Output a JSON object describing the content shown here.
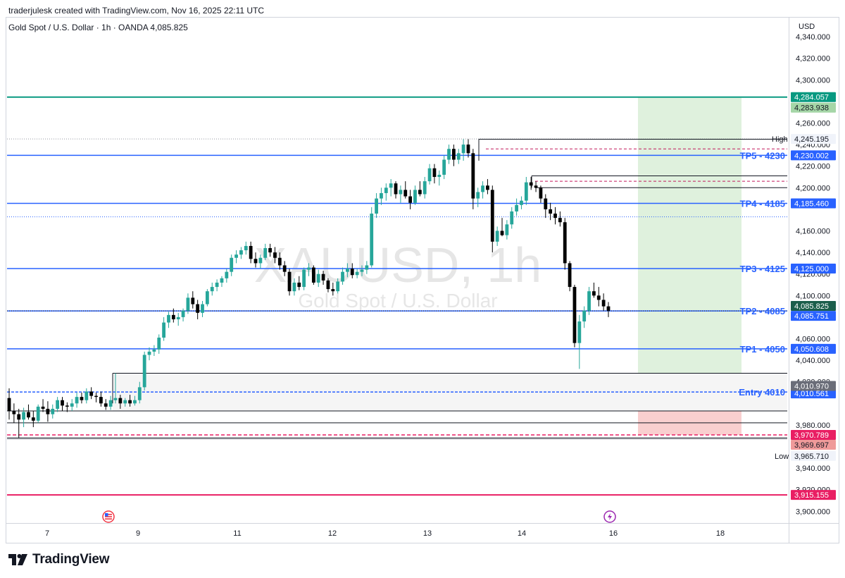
{
  "header": {
    "created_by": "traderjulesk created with TradingView.com, Nov 16, 2025 22:11 UTC",
    "symbol_line": "Gold Spot / U.S. Dollar · 1h · OANDA  4,085.825",
    "currency": "USD"
  },
  "brand": {
    "name": "TradingView"
  },
  "watermark": {
    "symbol": "XAUUSD, 1h",
    "name": "Gold Spot / U.S. Dollar"
  },
  "colors": {
    "up": "#26a69a",
    "down": "#000000",
    "level_blue": "#2962ff",
    "tp_green": "#089981",
    "stop_red": "#f23645",
    "target_zone": "#d9eed7",
    "stop_zone": "#f8caca"
  },
  "chart_data": {
    "type": "candlestick",
    "title": "Gold Spot / U.S. Dollar · 1h · OANDA",
    "ylim": [
      3890,
      4355
    ],
    "y_ticks": [
      "4,340.000",
      "4,320.000",
      "4,300.000",
      "4,260.000",
      "4,240.000",
      "4,220.000",
      "4,200.000",
      "4,160.000",
      "4,140.000",
      "4,120.000",
      "4,100.000",
      "4,060.000",
      "4,040.000",
      "4,020.000",
      "3,980.000",
      "3,940.000",
      "3,920.000",
      "3,900.000"
    ],
    "x_labels": [
      "7",
      "9",
      "11",
      "12",
      "13",
      "14",
      "16",
      "18"
    ],
    "levels": [
      {
        "label": "TP5 - 4230",
        "price": 4230.002,
        "tag": "4,230.002",
        "kind": "tp"
      },
      {
        "label": "TP4 - 4185",
        "price": 4185.46,
        "tag": "4,185.460",
        "kind": "tp"
      },
      {
        "label": "TP3 - 4125",
        "price": 4125.0,
        "tag": "4,125.000",
        "kind": "tp"
      },
      {
        "label": "TP2 - 4085",
        "price": 4085.751,
        "tag": "4,085.751",
        "kind": "tp"
      },
      {
        "label": "TP1 - 4050",
        "price": 4050.608,
        "tag": "4,050.608",
        "kind": "tp"
      },
      {
        "label": "Entry 4010",
        "price": 4010.561,
        "tag": "4,010.561",
        "kind": "entry"
      }
    ],
    "target_line": {
      "price": 4284.057,
      "tag": "4,284.057"
    },
    "target_zone_tag": "4,283.938",
    "stop_line": {
      "price": 3915.155,
      "tag": "3,915.155"
    },
    "stop_tags": [
      "3,970.789",
      "3,969.697"
    ],
    "entry_gray_tag": "4,010.970",
    "last_price": {
      "price": 4085.825,
      "tag": "4,085.825"
    },
    "high": {
      "label": "High",
      "price": 4245.195,
      "tag": "4,245.195"
    },
    "low": {
      "label": "Low",
      "price": 3965.71,
      "tag": "3,965.710"
    },
    "candles": [
      {
        "o": 4005,
        "h": 4014,
        "l": 3985,
        "c": 3993
      },
      {
        "o": 3993,
        "h": 4000,
        "l": 3982,
        "c": 3990
      },
      {
        "o": 3990,
        "h": 3995,
        "l": 3968,
        "c": 3985
      },
      {
        "o": 3985,
        "h": 3996,
        "l": 3978,
        "c": 3992
      },
      {
        "o": 3992,
        "h": 3999,
        "l": 3985,
        "c": 3987
      },
      {
        "o": 3987,
        "h": 3993,
        "l": 3978,
        "c": 3984
      },
      {
        "o": 3984,
        "h": 3999,
        "l": 3982,
        "c": 3997
      },
      {
        "o": 3997,
        "h": 4004,
        "l": 3992,
        "c": 3995
      },
      {
        "o": 3995,
        "h": 4002,
        "l": 3983,
        "c": 3990
      },
      {
        "o": 3990,
        "h": 3999,
        "l": 3986,
        "c": 3995
      },
      {
        "o": 3995,
        "h": 4006,
        "l": 3992,
        "c": 4003
      },
      {
        "o": 4003,
        "h": 4006,
        "l": 3993,
        "c": 3998
      },
      {
        "o": 3998,
        "h": 4001,
        "l": 3992,
        "c": 3997
      },
      {
        "o": 3997,
        "h": 4004,
        "l": 3993,
        "c": 4000
      },
      {
        "o": 4000,
        "h": 4010,
        "l": 3996,
        "c": 4006
      },
      {
        "o": 4006,
        "h": 4010,
        "l": 4000,
        "c": 4003
      },
      {
        "o": 4003,
        "h": 4014,
        "l": 4000,
        "c": 4011
      },
      {
        "o": 4011,
        "h": 4015,
        "l": 4004,
        "c": 4007
      },
      {
        "o": 4007,
        "h": 4010,
        "l": 4001,
        "c": 4006
      },
      {
        "o": 4006,
        "h": 4011,
        "l": 3997,
        "c": 4000
      },
      {
        "o": 4000,
        "h": 4004,
        "l": 3994,
        "c": 3997
      },
      {
        "o": 3997,
        "h": 4007,
        "l": 3994,
        "c": 4003
      },
      {
        "o": 4003,
        "h": 4028,
        "l": 4000,
        "c": 4005
      },
      {
        "o": 4005,
        "h": 4008,
        "l": 3995,
        "c": 4000
      },
      {
        "o": 4000,
        "h": 4005,
        "l": 3997,
        "c": 4003
      },
      {
        "o": 4003,
        "h": 4008,
        "l": 3997,
        "c": 4000
      },
      {
        "o": 4000,
        "h": 4007,
        "l": 3998,
        "c": 4003
      },
      {
        "o": 4003,
        "h": 4020,
        "l": 4000,
        "c": 4015
      },
      {
        "o": 4015,
        "h": 4048,
        "l": 4012,
        "c": 4045
      },
      {
        "o": 4045,
        "h": 4052,
        "l": 4040,
        "c": 4048
      },
      {
        "o": 4048,
        "h": 4054,
        "l": 4044,
        "c": 4050
      },
      {
        "o": 4050,
        "h": 4064,
        "l": 4046,
        "c": 4061
      },
      {
        "o": 4061,
        "h": 4080,
        "l": 4058,
        "c": 4075
      },
      {
        "o": 4075,
        "h": 4085,
        "l": 4070,
        "c": 4082
      },
      {
        "o": 4082,
        "h": 4088,
        "l": 4075,
        "c": 4078
      },
      {
        "o": 4078,
        "h": 4084,
        "l": 4072,
        "c": 4080
      },
      {
        "o": 4080,
        "h": 4088,
        "l": 4076,
        "c": 4086
      },
      {
        "o": 4086,
        "h": 4102,
        "l": 4083,
        "c": 4098
      },
      {
        "o": 4098,
        "h": 4104,
        "l": 4088,
        "c": 4092
      },
      {
        "o": 4092,
        "h": 4096,
        "l": 4078,
        "c": 4084
      },
      {
        "o": 4084,
        "h": 4095,
        "l": 4080,
        "c": 4092
      },
      {
        "o": 4092,
        "h": 4106,
        "l": 4090,
        "c": 4104
      },
      {
        "o": 4104,
        "h": 4112,
        "l": 4100,
        "c": 4108
      },
      {
        "o": 4108,
        "h": 4115,
        "l": 4104,
        "c": 4112
      },
      {
        "o": 4112,
        "h": 4118,
        "l": 4108,
        "c": 4116
      },
      {
        "o": 4116,
        "h": 4125,
        "l": 4112,
        "c": 4122
      },
      {
        "o": 4122,
        "h": 4138,
        "l": 4118,
        "c": 4135
      },
      {
        "o": 4135,
        "h": 4142,
        "l": 4130,
        "c": 4138
      },
      {
        "o": 4138,
        "h": 4145,
        "l": 4134,
        "c": 4142
      },
      {
        "o": 4142,
        "h": 4150,
        "l": 4138,
        "c": 4146
      },
      {
        "o": 4146,
        "h": 4150,
        "l": 4130,
        "c": 4134
      },
      {
        "o": 4134,
        "h": 4140,
        "l": 4126,
        "c": 4130
      },
      {
        "o": 4130,
        "h": 4138,
        "l": 4125,
        "c": 4135
      },
      {
        "o": 4135,
        "h": 4148,
        "l": 4133,
        "c": 4144
      },
      {
        "o": 4144,
        "h": 4148,
        "l": 4136,
        "c": 4140
      },
      {
        "o": 4140,
        "h": 4145,
        "l": 4130,
        "c": 4135
      },
      {
        "o": 4135,
        "h": 4140,
        "l": 4124,
        "c": 4128
      },
      {
        "o": 4128,
        "h": 4132,
        "l": 4118,
        "c": 4122
      },
      {
        "o": 4122,
        "h": 4125,
        "l": 4100,
        "c": 4104
      },
      {
        "o": 4104,
        "h": 4116,
        "l": 4100,
        "c": 4112
      },
      {
        "o": 4112,
        "h": 4118,
        "l": 4105,
        "c": 4108
      },
      {
        "o": 4108,
        "h": 4126,
        "l": 4105,
        "c": 4124
      },
      {
        "o": 4124,
        "h": 4130,
        "l": 4118,
        "c": 4126
      },
      {
        "o": 4126,
        "h": 4128,
        "l": 4110,
        "c": 4112
      },
      {
        "o": 4112,
        "h": 4124,
        "l": 4108,
        "c": 4120
      },
      {
        "o": 4120,
        "h": 4123,
        "l": 4110,
        "c": 4114
      },
      {
        "o": 4114,
        "h": 4116,
        "l": 4103,
        "c": 4106
      },
      {
        "o": 4106,
        "h": 4112,
        "l": 4100,
        "c": 4104
      },
      {
        "o": 4104,
        "h": 4116,
        "l": 4102,
        "c": 4113
      },
      {
        "o": 4113,
        "h": 4126,
        "l": 4110,
        "c": 4122
      },
      {
        "o": 4122,
        "h": 4130,
        "l": 4117,
        "c": 4125
      },
      {
        "o": 4125,
        "h": 4130,
        "l": 4116,
        "c": 4119
      },
      {
        "o": 4119,
        "h": 4125,
        "l": 4116,
        "c": 4122
      },
      {
        "o": 4122,
        "h": 4128,
        "l": 4118,
        "c": 4124
      },
      {
        "o": 4124,
        "h": 4132,
        "l": 4120,
        "c": 4128
      },
      {
        "o": 4128,
        "h": 4182,
        "l": 4126,
        "c": 4176
      },
      {
        "o": 4176,
        "h": 4195,
        "l": 4172,
        "c": 4190
      },
      {
        "o": 4190,
        "h": 4200,
        "l": 4184,
        "c": 4195
      },
      {
        "o": 4195,
        "h": 4204,
        "l": 4188,
        "c": 4200
      },
      {
        "o": 4200,
        "h": 4208,
        "l": 4192,
        "c": 4204
      },
      {
        "o": 4204,
        "h": 4206,
        "l": 4190,
        "c": 4194
      },
      {
        "o": 4194,
        "h": 4202,
        "l": 4186,
        "c": 4198
      },
      {
        "o": 4198,
        "h": 4206,
        "l": 4190,
        "c": 4192
      },
      {
        "o": 4192,
        "h": 4198,
        "l": 4180,
        "c": 4186
      },
      {
        "o": 4186,
        "h": 4202,
        "l": 4184,
        "c": 4198
      },
      {
        "o": 4198,
        "h": 4206,
        "l": 4192,
        "c": 4194
      },
      {
        "o": 4194,
        "h": 4210,
        "l": 4190,
        "c": 4206
      },
      {
        "o": 4206,
        "h": 4222,
        "l": 4203,
        "c": 4218
      },
      {
        "o": 4218,
        "h": 4222,
        "l": 4204,
        "c": 4210
      },
      {
        "o": 4210,
        "h": 4216,
        "l": 4202,
        "c": 4212
      },
      {
        "o": 4212,
        "h": 4230,
        "l": 4208,
        "c": 4226
      },
      {
        "o": 4226,
        "h": 4240,
        "l": 4222,
        "c": 4236
      },
      {
        "o": 4236,
        "h": 4240,
        "l": 4220,
        "c": 4226
      },
      {
        "o": 4226,
        "h": 4236,
        "l": 4222,
        "c": 4232
      },
      {
        "o": 4232,
        "h": 4245,
        "l": 4225,
        "c": 4240
      },
      {
        "o": 4240,
        "h": 4245,
        "l": 4228,
        "c": 4232
      },
      {
        "o": 4232,
        "h": 4236,
        "l": 4180,
        "c": 4190
      },
      {
        "o": 4190,
        "h": 4200,
        "l": 4182,
        "c": 4196
      },
      {
        "o": 4196,
        "h": 4206,
        "l": 4190,
        "c": 4202
      },
      {
        "o": 4202,
        "h": 4208,
        "l": 4194,
        "c": 4198
      },
      {
        "o": 4198,
        "h": 4202,
        "l": 4140,
        "c": 4150
      },
      {
        "o": 4150,
        "h": 4164,
        "l": 4146,
        "c": 4160
      },
      {
        "o": 4160,
        "h": 4172,
        "l": 4155,
        "c": 4156
      },
      {
        "o": 4156,
        "h": 4170,
        "l": 4152,
        "c": 4166
      },
      {
        "o": 4166,
        "h": 4182,
        "l": 4162,
        "c": 4178
      },
      {
        "o": 4178,
        "h": 4190,
        "l": 4174,
        "c": 4184
      },
      {
        "o": 4184,
        "h": 4192,
        "l": 4180,
        "c": 4188
      },
      {
        "o": 4188,
        "h": 4210,
        "l": 4184,
        "c": 4205
      },
      {
        "o": 4205,
        "h": 4210,
        "l": 4198,
        "c": 4202
      },
      {
        "o": 4202,
        "h": 4206,
        "l": 4196,
        "c": 4200
      },
      {
        "o": 4200,
        "h": 4202,
        "l": 4186,
        "c": 4190
      },
      {
        "o": 4190,
        "h": 4194,
        "l": 4172,
        "c": 4180
      },
      {
        "o": 4180,
        "h": 4186,
        "l": 4170,
        "c": 4176
      },
      {
        "o": 4176,
        "h": 4182,
        "l": 4166,
        "c": 4172
      },
      {
        "o": 4172,
        "h": 4178,
        "l": 4164,
        "c": 4168
      },
      {
        "o": 4168,
        "h": 4172,
        "l": 4124,
        "c": 4130
      },
      {
        "o": 4130,
        "h": 4132,
        "l": 4104,
        "c": 4108
      },
      {
        "o": 4108,
        "h": 4110,
        "l": 4052,
        "c": 4056
      },
      {
        "o": 4056,
        "h": 4082,
        "l": 4032,
        "c": 4076
      },
      {
        "o": 4076,
        "h": 4090,
        "l": 4070,
        "c": 4086
      },
      {
        "o": 4086,
        "h": 4108,
        "l": 4082,
        "c": 4104
      },
      {
        "o": 4104,
        "h": 4112,
        "l": 4098,
        "c": 4100
      },
      {
        "o": 4100,
        "h": 4108,
        "l": 4090,
        "c": 4096
      },
      {
        "o": 4096,
        "h": 4102,
        "l": 4086,
        "c": 4090
      },
      {
        "o": 4090,
        "h": 4094,
        "l": 4080,
        "c": 4086
      }
    ]
  }
}
